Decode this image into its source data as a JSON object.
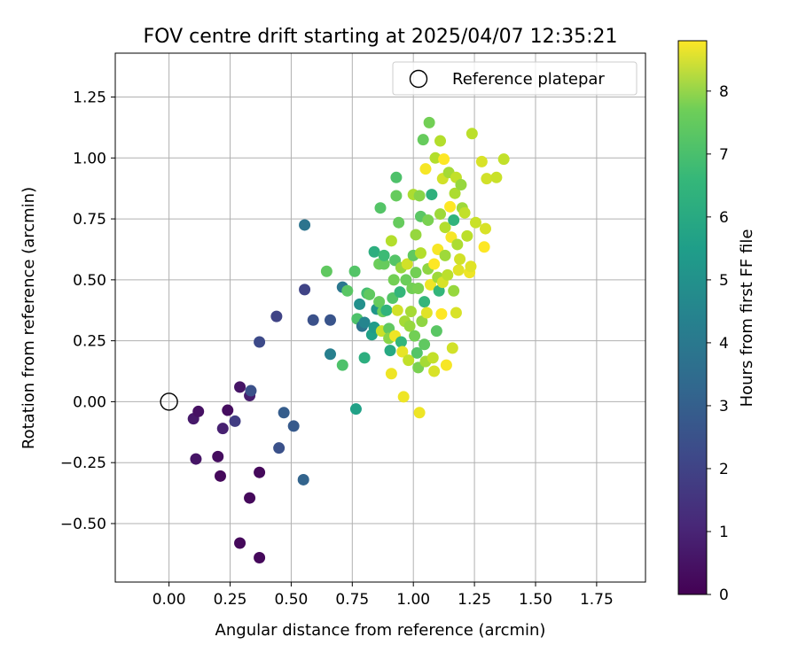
{
  "chart_data": {
    "type": "scatter",
    "title": "FOV centre drift starting at 2025/04/07 12:35:21",
    "xlabel": "Angular distance from reference (arcmin)",
    "ylabel": "Rotation from reference (arcmin)",
    "xlim": [
      -0.22,
      1.95
    ],
    "ylim": [
      -0.74,
      1.43
    ],
    "xticks": [
      "0.00",
      "0.25",
      "0.50",
      "0.75",
      "1.00",
      "1.25",
      "1.50",
      "1.75"
    ],
    "xtick_values": [
      0,
      0.25,
      0.5,
      0.75,
      1.0,
      1.25,
      1.5,
      1.75
    ],
    "yticks": [
      "−0.50",
      "−0.25",
      "0.00",
      "0.25",
      "0.50",
      "0.75",
      "1.00",
      "1.25"
    ],
    "ytick_values": [
      -0.5,
      -0.25,
      0,
      0.25,
      0.5,
      0.75,
      1.0,
      1.25
    ],
    "grid": true,
    "legend": {
      "position": "top-right",
      "entries": [
        "Reference platepar"
      ]
    },
    "reference_point": {
      "x": 0.0,
      "y": 0.0
    },
    "colorbar": {
      "label": "Hours from first FF file",
      "colormap": "viridis",
      "range": [
        0,
        8.8
      ],
      "ticks": [
        "0",
        "1",
        "2",
        "3",
        "4",
        "5",
        "6",
        "7",
        "8"
      ],
      "tick_values": [
        0,
        1,
        2,
        3,
        4,
        5,
        6,
        7,
        8
      ]
    },
    "points": [
      {
        "x": 0.1,
        "y": -0.07,
        "h": 0.6
      },
      {
        "x": 0.12,
        "y": -0.04,
        "h": 0.4
      },
      {
        "x": 0.11,
        "y": -0.235,
        "h": 0.5
      },
      {
        "x": 0.2,
        "y": -0.225,
        "h": 0.3
      },
      {
        "x": 0.21,
        "y": -0.305,
        "h": 0.2
      },
      {
        "x": 0.22,
        "y": -0.11,
        "h": 0.8
      },
      {
        "x": 0.24,
        "y": -0.035,
        "h": 0.3
      },
      {
        "x": 0.27,
        "y": -0.08,
        "h": 1.6
      },
      {
        "x": 0.29,
        "y": 0.06,
        "h": 0.5
      },
      {
        "x": 0.33,
        "y": 0.025,
        "h": 0.7
      },
      {
        "x": 0.335,
        "y": 0.045,
        "h": 2.2
      },
      {
        "x": 0.33,
        "y": -0.395,
        "h": 0.2
      },
      {
        "x": 0.29,
        "y": -0.58,
        "h": 0.2
      },
      {
        "x": 0.37,
        "y": -0.29,
        "h": 0.2
      },
      {
        "x": 0.37,
        "y": -0.64,
        "h": 0.2
      },
      {
        "x": 0.37,
        "y": 0.245,
        "h": 2.0
      },
      {
        "x": 0.44,
        "y": 0.35,
        "h": 1.8
      },
      {
        "x": 0.45,
        "y": -0.19,
        "h": 2.2
      },
      {
        "x": 0.47,
        "y": -0.045,
        "h": 2.6
      },
      {
        "x": 0.51,
        "y": -0.1,
        "h": 2.5
      },
      {
        "x": 0.55,
        "y": -0.32,
        "h": 2.8
      },
      {
        "x": 0.555,
        "y": 0.46,
        "h": 1.8
      },
      {
        "x": 0.555,
        "y": 0.725,
        "h": 3.4
      },
      {
        "x": 0.59,
        "y": 0.335,
        "h": 2.2
      },
      {
        "x": 0.66,
        "y": 0.335,
        "h": 2.3
      },
      {
        "x": 0.66,
        "y": 0.195,
        "h": 3.8
      },
      {
        "x": 0.645,
        "y": 0.535,
        "h": 6.6
      },
      {
        "x": 0.71,
        "y": 0.47,
        "h": 3.5
      },
      {
        "x": 0.71,
        "y": 0.15,
        "h": 6.3
      },
      {
        "x": 0.73,
        "y": 0.455,
        "h": 6.5
      },
      {
        "x": 0.76,
        "y": 0.535,
        "h": 6.4
      },
      {
        "x": 0.765,
        "y": -0.03,
        "h": 5.0
      },
      {
        "x": 0.77,
        "y": 0.34,
        "h": 6.3
      },
      {
        "x": 0.78,
        "y": 0.4,
        "h": 4.4
      },
      {
        "x": 0.79,
        "y": 0.31,
        "h": 3.4
      },
      {
        "x": 0.8,
        "y": 0.325,
        "h": 4.0
      },
      {
        "x": 0.8,
        "y": 0.18,
        "h": 5.5
      },
      {
        "x": 0.81,
        "y": 0.445,
        "h": 6.1
      },
      {
        "x": 0.82,
        "y": 0.44,
        "h": 6.6
      },
      {
        "x": 0.83,
        "y": 0.275,
        "h": 5.0
      },
      {
        "x": 0.84,
        "y": 0.305,
        "h": 4.8
      },
      {
        "x": 0.84,
        "y": 0.615,
        "h": 5.5
      },
      {
        "x": 0.85,
        "y": 0.38,
        "h": 4.6
      },
      {
        "x": 0.86,
        "y": 0.41,
        "h": 6.7
      },
      {
        "x": 0.86,
        "y": 0.565,
        "h": 6.8
      },
      {
        "x": 0.865,
        "y": 0.795,
        "h": 6.4
      },
      {
        "x": 0.87,
        "y": 0.29,
        "h": 8.1
      },
      {
        "x": 0.875,
        "y": 0.37,
        "h": 6.8
      },
      {
        "x": 0.88,
        "y": 0.565,
        "h": 6.7
      },
      {
        "x": 0.88,
        "y": 0.6,
        "h": 6.0
      },
      {
        "x": 0.89,
        "y": 0.375,
        "h": 5.7
      },
      {
        "x": 0.9,
        "y": 0.3,
        "h": 6.6
      },
      {
        "x": 0.9,
        "y": 0.26,
        "h": 7.2
      },
      {
        "x": 0.905,
        "y": 0.21,
        "h": 5.3
      },
      {
        "x": 0.91,
        "y": 0.66,
        "h": 7.8
      },
      {
        "x": 0.91,
        "y": 0.115,
        "h": 8.6
      },
      {
        "x": 0.915,
        "y": 0.425,
        "h": 6.4
      },
      {
        "x": 0.92,
        "y": 0.5,
        "h": 6.9
      },
      {
        "x": 0.925,
        "y": 0.58,
        "h": 6.4
      },
      {
        "x": 0.925,
        "y": 0.27,
        "h": 8.6
      },
      {
        "x": 0.93,
        "y": 0.845,
        "h": 6.7
      },
      {
        "x": 0.93,
        "y": 0.92,
        "h": 6.3
      },
      {
        "x": 0.935,
        "y": 0.375,
        "h": 8.2
      },
      {
        "x": 0.94,
        "y": 0.735,
        "h": 6.7
      },
      {
        "x": 0.945,
        "y": 0.45,
        "h": 5.8
      },
      {
        "x": 0.95,
        "y": 0.55,
        "h": 7.4
      },
      {
        "x": 0.95,
        "y": 0.245,
        "h": 5.8
      },
      {
        "x": 0.955,
        "y": 0.205,
        "h": 8.5
      },
      {
        "x": 0.96,
        "y": 0.02,
        "h": 8.6
      },
      {
        "x": 0.965,
        "y": 0.33,
        "h": 7.6
      },
      {
        "x": 0.97,
        "y": 0.5,
        "h": 6.8
      },
      {
        "x": 0.975,
        "y": 0.565,
        "h": 8.2
      },
      {
        "x": 0.98,
        "y": 0.17,
        "h": 8.0
      },
      {
        "x": 0.985,
        "y": 0.31,
        "h": 7.4
      },
      {
        "x": 0.99,
        "y": 0.37,
        "h": 7.6
      },
      {
        "x": 0.995,
        "y": 0.465,
        "h": 6.9
      },
      {
        "x": 1.0,
        "y": 0.6,
        "h": 6.6
      },
      {
        "x": 1.0,
        "y": 0.85,
        "h": 7.7
      },
      {
        "x": 1.005,
        "y": 0.27,
        "h": 6.9
      },
      {
        "x": 1.01,
        "y": 0.53,
        "h": 6.9
      },
      {
        "x": 1.01,
        "y": 0.685,
        "h": 7.4
      },
      {
        "x": 1.015,
        "y": 0.2,
        "h": 6.4
      },
      {
        "x": 1.02,
        "y": 0.465,
        "h": 7.0
      },
      {
        "x": 1.02,
        "y": 0.14,
        "h": 7.0
      },
      {
        "x": 1.025,
        "y": 0.845,
        "h": 7.2
      },
      {
        "x": 1.025,
        "y": -0.045,
        "h": 8.6
      },
      {
        "x": 1.03,
        "y": 0.61,
        "h": 7.8
      },
      {
        "x": 1.03,
        "y": 0.76,
        "h": 6.5
      },
      {
        "x": 1.035,
        "y": 0.33,
        "h": 7.3
      },
      {
        "x": 1.04,
        "y": 1.075,
        "h": 6.7
      },
      {
        "x": 1.045,
        "y": 0.41,
        "h": 5.8
      },
      {
        "x": 1.045,
        "y": 0.235,
        "h": 6.6
      },
      {
        "x": 1.05,
        "y": 0.955,
        "h": 8.7
      },
      {
        "x": 1.05,
        "y": 0.165,
        "h": 7.6
      },
      {
        "x": 1.055,
        "y": 0.365,
        "h": 8.4
      },
      {
        "x": 1.06,
        "y": 0.545,
        "h": 7.3
      },
      {
        "x": 1.06,
        "y": 0.745,
        "h": 7.0
      },
      {
        "x": 1.065,
        "y": 1.145,
        "h": 6.9
      },
      {
        "x": 1.07,
        "y": 0.48,
        "h": 8.6
      },
      {
        "x": 1.075,
        "y": 0.85,
        "h": 5.6
      },
      {
        "x": 1.08,
        "y": 0.18,
        "h": 8.0
      },
      {
        "x": 1.085,
        "y": 0.125,
        "h": 8.3
      },
      {
        "x": 1.085,
        "y": 0.565,
        "h": 8.8
      },
      {
        "x": 1.09,
        "y": 1.0,
        "h": 7.8
      },
      {
        "x": 1.095,
        "y": 0.29,
        "h": 6.5
      },
      {
        "x": 1.1,
        "y": 0.51,
        "h": 7.5
      },
      {
        "x": 1.1,
        "y": 0.625,
        "h": 8.7
      },
      {
        "x": 1.105,
        "y": 0.455,
        "h": 5.8
      },
      {
        "x": 1.11,
        "y": 1.07,
        "h": 7.8
      },
      {
        "x": 1.11,
        "y": 0.77,
        "h": 7.5
      },
      {
        "x": 1.115,
        "y": 0.36,
        "h": 8.8
      },
      {
        "x": 1.12,
        "y": 0.915,
        "h": 8.2
      },
      {
        "x": 1.12,
        "y": 0.49,
        "h": 8.3
      },
      {
        "x": 1.125,
        "y": 0.995,
        "h": 8.8
      },
      {
        "x": 1.13,
        "y": 0.6,
        "h": 7.5
      },
      {
        "x": 1.13,
        "y": 0.715,
        "h": 7.8
      },
      {
        "x": 1.135,
        "y": 0.15,
        "h": 8.7
      },
      {
        "x": 1.14,
        "y": 0.52,
        "h": 7.9
      },
      {
        "x": 1.145,
        "y": 0.94,
        "h": 7.6
      },
      {
        "x": 1.15,
        "y": 0.8,
        "h": 8.8
      },
      {
        "x": 1.155,
        "y": 0.675,
        "h": 8.7
      },
      {
        "x": 1.16,
        "y": 0.22,
        "h": 8.2
      },
      {
        "x": 1.165,
        "y": 0.455,
        "h": 7.4
      },
      {
        "x": 1.165,
        "y": 0.745,
        "h": 5.7
      },
      {
        "x": 1.17,
        "y": 0.855,
        "h": 7.7
      },
      {
        "x": 1.175,
        "y": 0.365,
        "h": 8.3
      },
      {
        "x": 1.175,
        "y": 0.92,
        "h": 8.0
      },
      {
        "x": 1.18,
        "y": 0.645,
        "h": 7.7
      },
      {
        "x": 1.185,
        "y": 0.54,
        "h": 8.4
      },
      {
        "x": 1.19,
        "y": 0.585,
        "h": 8.2
      },
      {
        "x": 1.195,
        "y": 0.89,
        "h": 7.4
      },
      {
        "x": 1.2,
        "y": 0.795,
        "h": 7.5
      },
      {
        "x": 1.21,
        "y": 0.775,
        "h": 8.0
      },
      {
        "x": 1.22,
        "y": 0.68,
        "h": 7.9
      },
      {
        "x": 1.23,
        "y": 0.53,
        "h": 8.6
      },
      {
        "x": 1.235,
        "y": 0.555,
        "h": 8.4
      },
      {
        "x": 1.24,
        "y": 1.1,
        "h": 7.9
      },
      {
        "x": 1.255,
        "y": 0.735,
        "h": 8.1
      },
      {
        "x": 1.28,
        "y": 0.985,
        "h": 8.3
      },
      {
        "x": 1.29,
        "y": 0.635,
        "h": 8.8
      },
      {
        "x": 1.295,
        "y": 0.71,
        "h": 8.3
      },
      {
        "x": 1.3,
        "y": 0.915,
        "h": 8.2
      },
      {
        "x": 1.34,
        "y": 0.92,
        "h": 8.1
      },
      {
        "x": 1.37,
        "y": 0.995,
        "h": 8.0
      }
    ]
  }
}
